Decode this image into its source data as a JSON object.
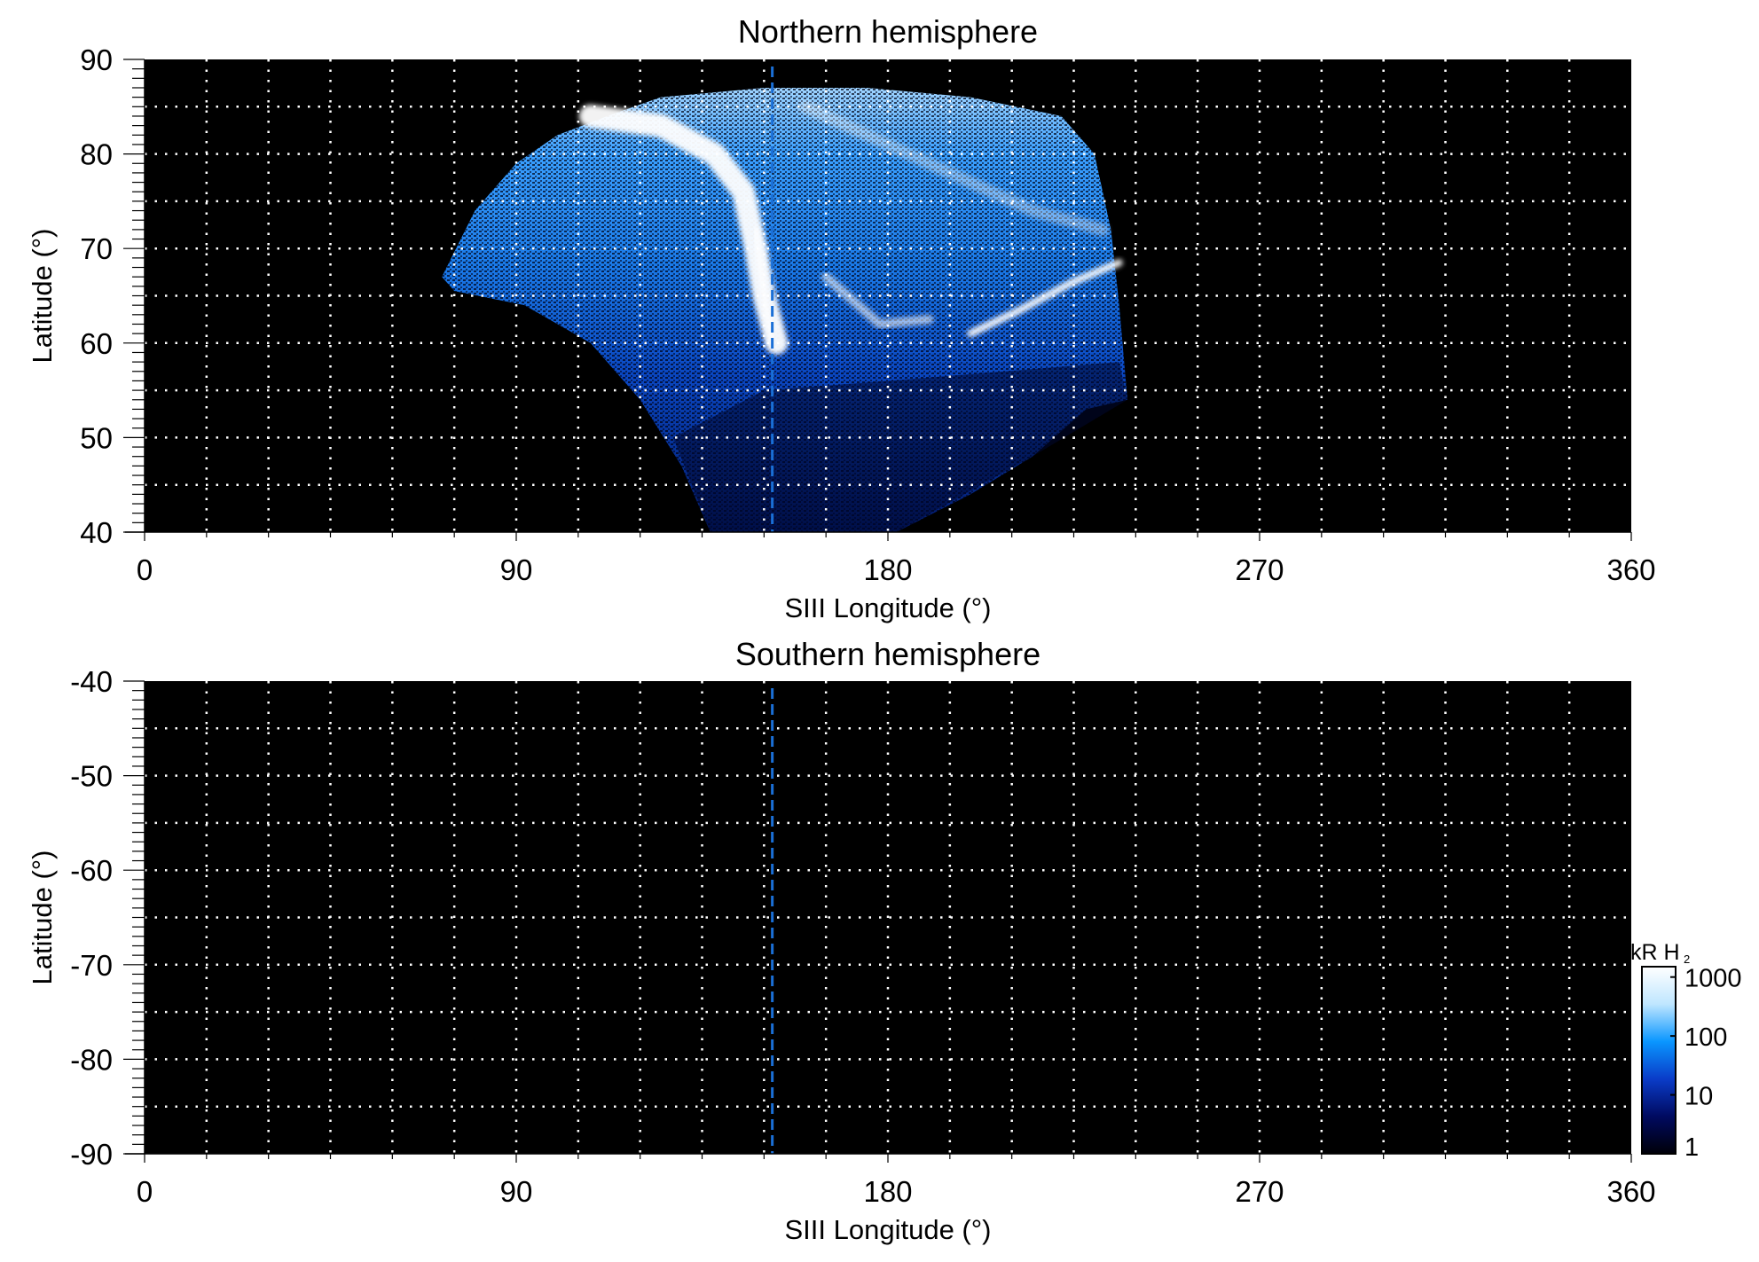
{
  "chart_data": [
    {
      "type": "heatmap",
      "title": "Northern hemisphere",
      "xlabel": "SIII Longitude (°)",
      "ylabel": "Latitude (°)",
      "xlim": [
        0,
        360
      ],
      "ylim": [
        40,
        90
      ],
      "xticks": [
        "0",
        "90",
        "180",
        "270",
        "360"
      ],
      "yticks": [
        "40",
        "50",
        "60",
        "70",
        "80",
        "90"
      ],
      "grid": true,
      "grid_x_step": 15,
      "grid_y_step": 5,
      "dashed_line_longitude": 152,
      "dashed_line_color": "#1a6fd6",
      "background": "#000000",
      "emission_region": "auroral emission spanning ~72°–238° longitude, ~40°–87° latitude; bright main oval arcs near 150° (60–80° lat) and 195°–237° (60–68° lat)"
    },
    {
      "type": "heatmap",
      "title": "Southern hemisphere",
      "xlabel": "SIII Longitude (°)",
      "ylabel": "Latitude (°)",
      "xlim": [
        0,
        360
      ],
      "ylim": [
        -90,
        -40
      ],
      "xticks": [
        "0",
        "90",
        "180",
        "270",
        "360"
      ],
      "yticks": [
        "-40",
        "-50",
        "-60",
        "-70",
        "-80",
        "-90"
      ],
      "grid": true,
      "grid_x_step": 15,
      "grid_y_step": 5,
      "dashed_line_longitude": 152,
      "dashed_line_color": "#1a6fd6",
      "background": "#000000"
    }
  ],
  "colorbar": {
    "label": "kR H",
    "label_sub": "2",
    "scale": "log",
    "ticks": [
      "1",
      "10",
      "100",
      "1000"
    ],
    "range": [
      1,
      1500
    ],
    "colors": [
      "#000008",
      "#000a60",
      "#0a3cc8",
      "#0a96ff",
      "#bfe6ff",
      "#ffffff"
    ]
  }
}
